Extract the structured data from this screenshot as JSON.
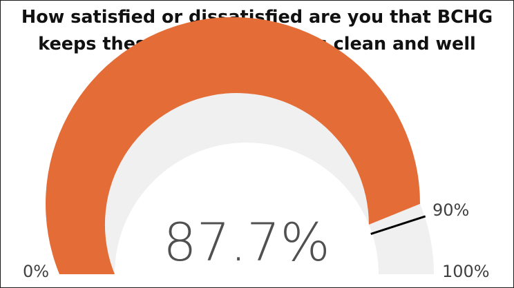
{
  "chart_data": {
    "type": "gauge",
    "title": "How satisfied or dissatisfied are you that BCHG keeps these communal areas clean and well maintained?",
    "value": 87.7,
    "value_label": "87.7%",
    "min": 0,
    "max": 100,
    "min_label": "0%",
    "max_label": "100%",
    "target": 90,
    "target_label": "90%",
    "colors": {
      "fill": "#E46C37",
      "track": "#F0F0F0",
      "target_marker": "#000000"
    }
  }
}
